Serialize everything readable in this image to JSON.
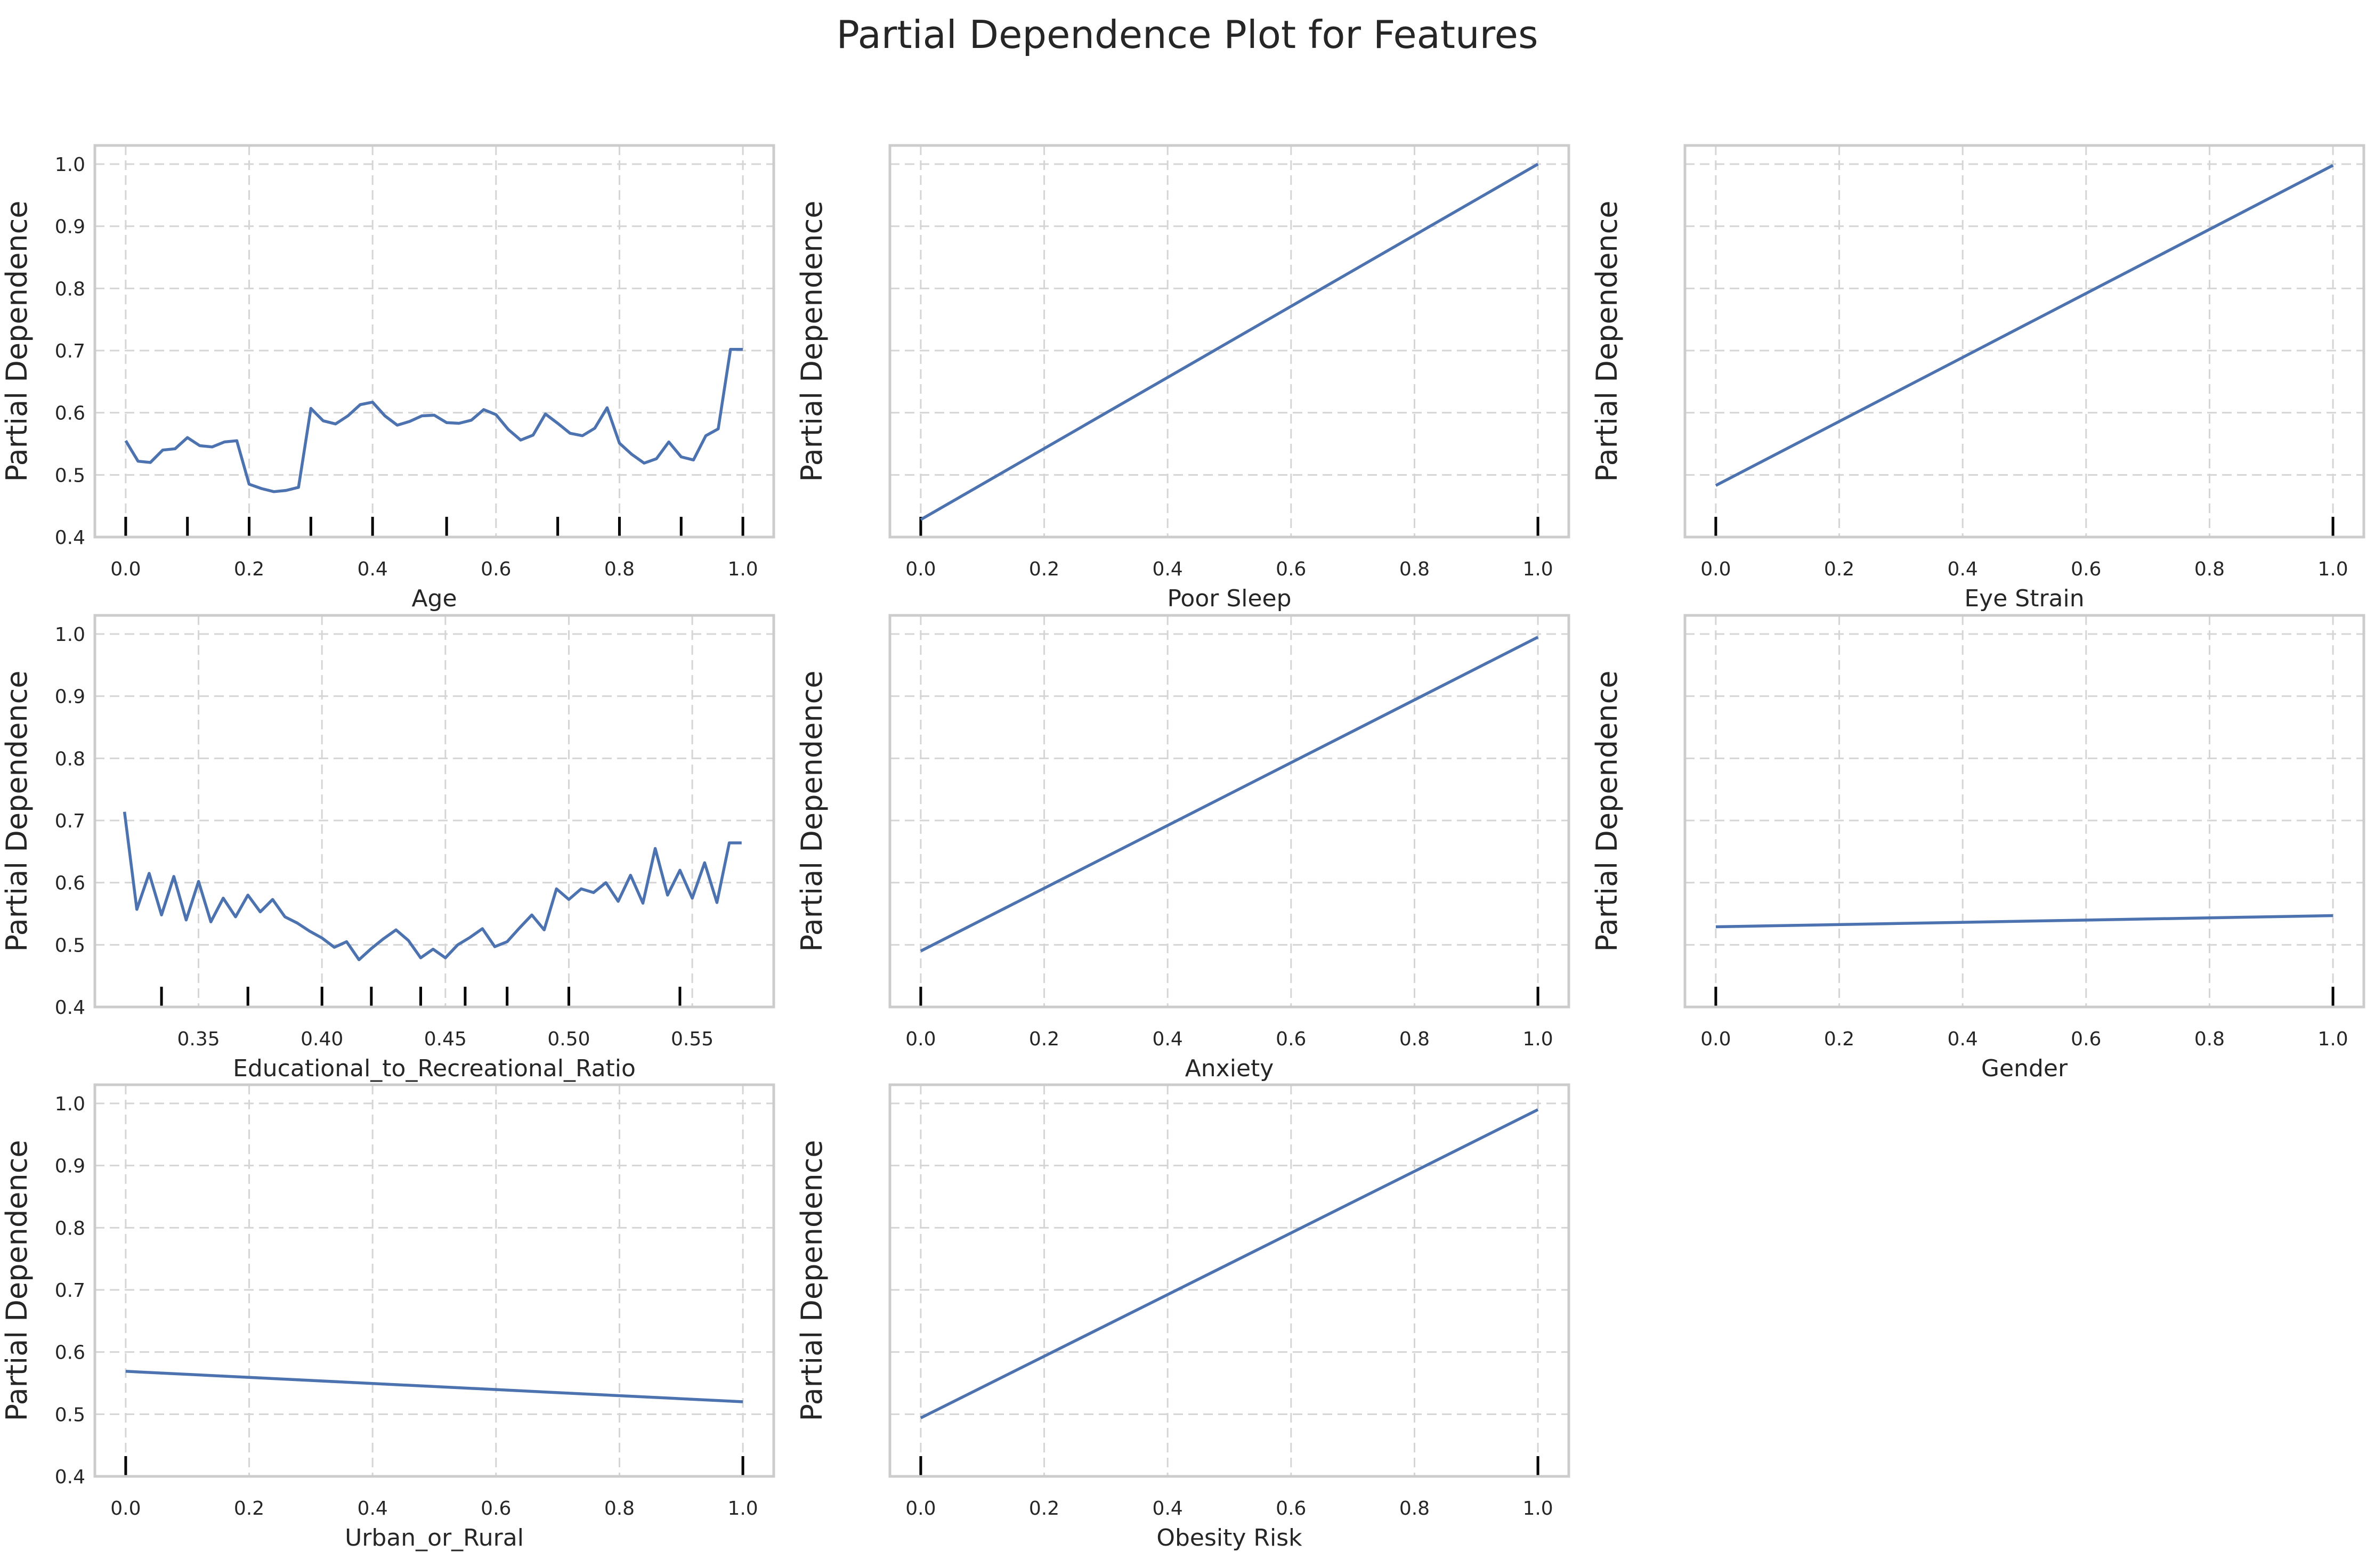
{
  "title": "Partial Dependence Plot for  Features",
  "chart_data": [
    {
      "type": "line",
      "xlabel": "Age",
      "ylabel": "Partial Dependence",
      "xlim": [
        -0.05,
        1.05
      ],
      "ylim": [
        0.4,
        1.03
      ],
      "xticks": [
        0.0,
        0.2,
        0.4,
        0.6,
        0.8,
        1.0
      ],
      "xtick_labels": [
        "0.0",
        "0.2",
        "0.4",
        "0.6",
        "0.8",
        "1.0"
      ],
      "yticks": [
        0.4,
        0.5,
        0.6,
        0.7,
        0.8,
        0.9,
        1.0
      ],
      "ytick_labels": [
        "0.4",
        "0.5",
        "0.6",
        "0.7",
        "0.8",
        "0.9",
        "1.0"
      ],
      "show_yticklabels": true,
      "grid": true,
      "x": [
        0.0,
        0.02,
        0.04,
        0.06,
        0.08,
        0.1,
        0.12,
        0.14,
        0.16,
        0.18,
        0.2,
        0.22,
        0.24,
        0.26,
        0.28,
        0.3,
        0.32,
        0.34,
        0.36,
        0.38,
        0.4,
        0.42,
        0.44,
        0.46,
        0.48,
        0.5,
        0.52,
        0.54,
        0.56,
        0.58,
        0.6,
        0.62,
        0.64,
        0.66,
        0.68,
        0.7,
        0.72,
        0.74,
        0.76,
        0.78,
        0.8,
        0.82,
        0.84,
        0.86,
        0.88,
        0.9,
        0.92,
        0.94,
        0.96,
        0.98,
        1.0
      ],
      "y": [
        0.555,
        0.522,
        0.52,
        0.54,
        0.542,
        0.56,
        0.547,
        0.545,
        0.553,
        0.555,
        0.485,
        0.478,
        0.473,
        0.475,
        0.48,
        0.607,
        0.587,
        0.582,
        0.595,
        0.613,
        0.617,
        0.595,
        0.58,
        0.586,
        0.595,
        0.596,
        0.584,
        0.583,
        0.588,
        0.605,
        0.597,
        0.573,
        0.556,
        0.564,
        0.598,
        0.583,
        0.567,
        0.563,
        0.575,
        0.608,
        0.551,
        0.533,
        0.519,
        0.526,
        0.553,
        0.529,
        0.524,
        0.563,
        0.574,
        0.702,
        0.702
      ],
      "rug": [
        0.0,
        0.1,
        0.2,
        0.3,
        0.4,
        0.52,
        0.7,
        0.8,
        0.9,
        1.0
      ]
    },
    {
      "type": "line",
      "xlabel": "Poor Sleep",
      "ylabel": "Partial Dependence",
      "xlim": [
        -0.05,
        1.05
      ],
      "ylim": [
        0.4,
        1.03
      ],
      "xticks": [
        0.0,
        0.2,
        0.4,
        0.6,
        0.8,
        1.0
      ],
      "xtick_labels": [
        "0.0",
        "0.2",
        "0.4",
        "0.6",
        "0.8",
        "1.0"
      ],
      "yticks": [
        0.4,
        0.5,
        0.6,
        0.7,
        0.8,
        0.9,
        1.0
      ],
      "ytick_labels": [
        "0.4",
        "0.5",
        "0.6",
        "0.7",
        "0.8",
        "0.9",
        "1.0"
      ],
      "show_yticklabels": false,
      "grid": true,
      "x": [
        0.0,
        1.0
      ],
      "y": [
        0.428,
        1.0
      ],
      "rug": [
        0.0,
        1.0
      ]
    },
    {
      "type": "line",
      "xlabel": "Eye Strain",
      "ylabel": "Partial Dependence",
      "xlim": [
        -0.05,
        1.05
      ],
      "ylim": [
        0.4,
        1.03
      ],
      "xticks": [
        0.0,
        0.2,
        0.4,
        0.6,
        0.8,
        1.0
      ],
      "xtick_labels": [
        "0.0",
        "0.2",
        "0.4",
        "0.6",
        "0.8",
        "1.0"
      ],
      "yticks": [
        0.4,
        0.5,
        0.6,
        0.7,
        0.8,
        0.9,
        1.0
      ],
      "ytick_labels": [
        "0.4",
        "0.5",
        "0.6",
        "0.7",
        "0.8",
        "0.9",
        "1.0"
      ],
      "show_yticklabels": false,
      "grid": true,
      "x": [
        0.0,
        1.0
      ],
      "y": [
        0.483,
        0.998
      ],
      "rug": [
        0.0,
        1.0
      ]
    },
    {
      "type": "line",
      "xlabel": "Educational_to_Recreational_Ratio",
      "ylabel": "Partial Dependence",
      "xlim": [
        0.308,
        0.583
      ],
      "ylim": [
        0.4,
        1.03
      ],
      "xticks": [
        0.35,
        0.4,
        0.45,
        0.5,
        0.55
      ],
      "xtick_labels": [
        "0.35",
        "0.40",
        "0.45",
        "0.50",
        "0.55"
      ],
      "yticks": [
        0.4,
        0.5,
        0.6,
        0.7,
        0.8,
        0.9,
        1.0
      ],
      "ytick_labels": [
        "0.4",
        "0.5",
        "0.6",
        "0.7",
        "0.8",
        "0.9",
        "1.0"
      ],
      "show_yticklabels": true,
      "grid": true,
      "x": [
        0.32,
        0.325,
        0.33,
        0.335,
        0.34,
        0.345,
        0.35,
        0.355,
        0.36,
        0.365,
        0.37,
        0.375,
        0.38,
        0.385,
        0.39,
        0.395,
        0.4,
        0.405,
        0.41,
        0.415,
        0.42,
        0.425,
        0.43,
        0.435,
        0.44,
        0.445,
        0.45,
        0.455,
        0.46,
        0.465,
        0.47,
        0.475,
        0.48,
        0.485,
        0.49,
        0.495,
        0.5,
        0.505,
        0.51,
        0.515,
        0.52,
        0.525,
        0.53,
        0.535,
        0.54,
        0.545,
        0.55,
        0.555,
        0.56,
        0.565,
        0.57
      ],
      "y": [
        0.714,
        0.557,
        0.615,
        0.548,
        0.61,
        0.54,
        0.602,
        0.537,
        0.575,
        0.545,
        0.58,
        0.553,
        0.573,
        0.545,
        0.535,
        0.522,
        0.511,
        0.496,
        0.505,
        0.476,
        0.494,
        0.51,
        0.524,
        0.507,
        0.479,
        0.493,
        0.479,
        0.5,
        0.512,
        0.526,
        0.497,
        0.505,
        0.527,
        0.548,
        0.524,
        0.59,
        0.573,
        0.59,
        0.584,
        0.6,
        0.57,
        0.612,
        0.567,
        0.655,
        0.58,
        0.62,
        0.575,
        0.632,
        0.568,
        0.664,
        0.664
      ],
      "rug": [
        0.335,
        0.37,
        0.4,
        0.42,
        0.44,
        0.458,
        0.475,
        0.5,
        0.545
      ]
    },
    {
      "type": "line",
      "xlabel": "Anxiety",
      "ylabel": "Partial Dependence",
      "xlim": [
        -0.05,
        1.05
      ],
      "ylim": [
        0.4,
        1.03
      ],
      "xticks": [
        0.0,
        0.2,
        0.4,
        0.6,
        0.8,
        1.0
      ],
      "xtick_labels": [
        "0.0",
        "0.2",
        "0.4",
        "0.6",
        "0.8",
        "1.0"
      ],
      "yticks": [
        0.4,
        0.5,
        0.6,
        0.7,
        0.8,
        0.9,
        1.0
      ],
      "ytick_labels": [
        "0.4",
        "0.5",
        "0.6",
        "0.7",
        "0.8",
        "0.9",
        "1.0"
      ],
      "show_yticklabels": false,
      "grid": true,
      "x": [
        0.0,
        1.0
      ],
      "y": [
        0.49,
        0.995
      ],
      "rug": [
        0.0,
        1.0
      ]
    },
    {
      "type": "line",
      "xlabel": "Gender",
      "ylabel": "Partial Dependence",
      "xlim": [
        -0.05,
        1.05
      ],
      "ylim": [
        0.4,
        1.03
      ],
      "xticks": [
        0.0,
        0.2,
        0.4,
        0.6,
        0.8,
        1.0
      ],
      "xtick_labels": [
        "0.0",
        "0.2",
        "0.4",
        "0.6",
        "0.8",
        "1.0"
      ],
      "yticks": [
        0.4,
        0.5,
        0.6,
        0.7,
        0.8,
        0.9,
        1.0
      ],
      "ytick_labels": [
        "0.4",
        "0.5",
        "0.6",
        "0.7",
        "0.8",
        "0.9",
        "1.0"
      ],
      "show_yticklabels": false,
      "grid": true,
      "x": [
        0.0,
        1.0
      ],
      "y": [
        0.529,
        0.547
      ],
      "rug": [
        0.0,
        1.0
      ]
    },
    {
      "type": "line",
      "xlabel": "Urban_or_Rural",
      "ylabel": "Partial Dependence",
      "xlim": [
        -0.05,
        1.05
      ],
      "ylim": [
        0.4,
        1.03
      ],
      "xticks": [
        0.0,
        0.2,
        0.4,
        0.6,
        0.8,
        1.0
      ],
      "xtick_labels": [
        "0.0",
        "0.2",
        "0.4",
        "0.6",
        "0.8",
        "1.0"
      ],
      "yticks": [
        0.4,
        0.5,
        0.6,
        0.7,
        0.8,
        0.9,
        1.0
      ],
      "ytick_labels": [
        "0.4",
        "0.5",
        "0.6",
        "0.7",
        "0.8",
        "0.9",
        "1.0"
      ],
      "show_yticklabels": true,
      "grid": true,
      "x": [
        0.0,
        1.0
      ],
      "y": [
        0.569,
        0.52
      ],
      "rug": [
        0.0,
        1.0
      ]
    },
    {
      "type": "line",
      "xlabel": "Obesity Risk",
      "ylabel": "Partial Dependence",
      "xlim": [
        -0.05,
        1.05
      ],
      "ylim": [
        0.4,
        1.03
      ],
      "xticks": [
        0.0,
        0.2,
        0.4,
        0.6,
        0.8,
        1.0
      ],
      "xtick_labels": [
        "0.0",
        "0.2",
        "0.4",
        "0.6",
        "0.8",
        "1.0"
      ],
      "yticks": [
        0.4,
        0.5,
        0.6,
        0.7,
        0.8,
        0.9,
        1.0
      ],
      "ytick_labels": [
        "0.4",
        "0.5",
        "0.6",
        "0.7",
        "0.8",
        "0.9",
        "1.0"
      ],
      "show_yticklabels": false,
      "grid": true,
      "x": [
        0.0,
        1.0
      ],
      "y": [
        0.494,
        0.99
      ],
      "rug": [
        0.0,
        1.0
      ]
    }
  ],
  "colors": {
    "line": "#4c72b0",
    "rug": "#000000",
    "grid": "#d5d5d5",
    "frame": "#cccccc",
    "text": "#262626"
  }
}
